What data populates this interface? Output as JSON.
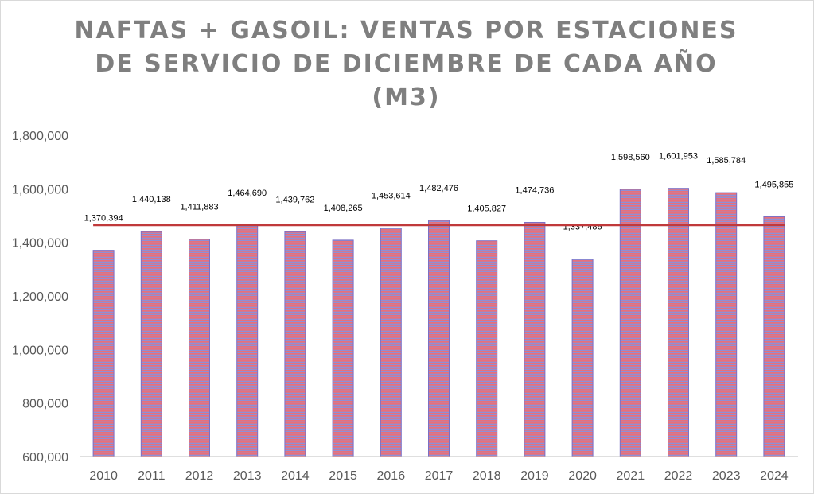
{
  "chart_data": {
    "type": "bar",
    "title_lines": [
      "NAFTAS + GASOIL: VENTAS POR ESTACIONES",
      "DE SERVICIO DE DICIEMBRE DE CADA AÑO",
      "(M3)"
    ],
    "categories": [
      "2010",
      "2011",
      "2012",
      "2013",
      "2014",
      "2015",
      "2016",
      "2017",
      "2018",
      "2019",
      "2020",
      "2021",
      "2022",
      "2023",
      "2024"
    ],
    "values": [
      1370394,
      1440138,
      1411883,
      1464690,
      1439762,
      1408265,
      1453614,
      1482476,
      1405827,
      1474736,
      1337486,
      1598560,
      1601953,
      1585784,
      1495855
    ],
    "data_labels": [
      "1,370,394",
      "1,440,138",
      "1,411,883",
      "1,464,690",
      "1,439,762",
      "1,408,265",
      "1,453,614",
      "1,482,476",
      "1,405,827",
      "1,474,736",
      "1,337,486",
      "1,598,560",
      "1,601,953",
      "1,585,784",
      "1,495,855"
    ],
    "average_line_value": 1465000,
    "ylim": [
      600000,
      1800000
    ],
    "yticks": [
      600000,
      800000,
      1000000,
      1200000,
      1400000,
      1600000,
      1800000
    ],
    "ytick_labels": [
      "600,000",
      "800,000",
      "1,000,000",
      "1,200,000",
      "1,400,000",
      "1,600,000",
      "1,800,000"
    ],
    "xlabel": "",
    "ylabel": "",
    "grid": false,
    "colors": {
      "bar_stripe_a": "#e8707a",
      "bar_stripe_b": "#8f8fd6",
      "bar_edge": "#7b6fc4",
      "average_line": "#c0393b",
      "axis": "#bfbfbf",
      "title": "#7f7f7f"
    }
  }
}
